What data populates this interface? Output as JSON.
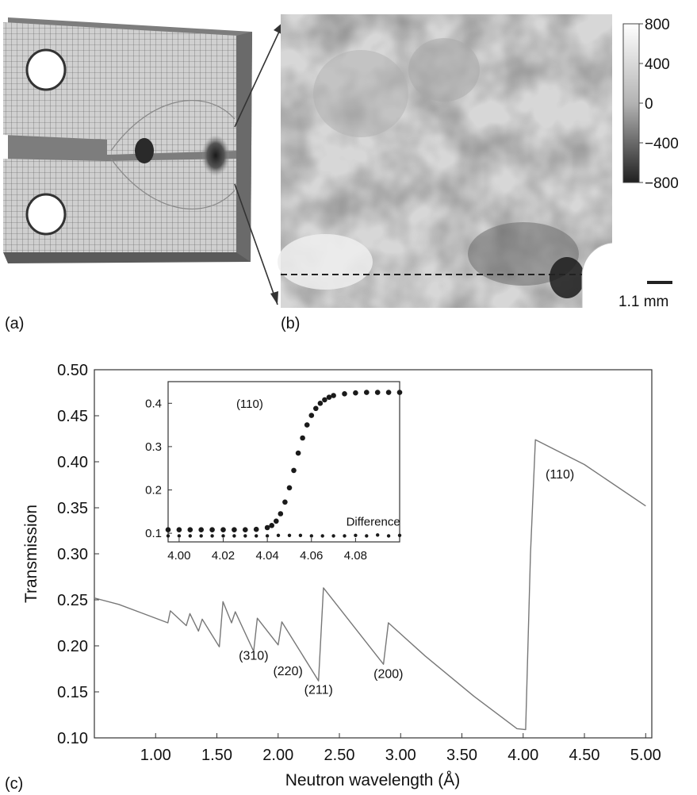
{
  "panel_labels": {
    "a": "(a)",
    "b": "(b)",
    "c": "(c)"
  },
  "colorbar": {
    "ticks": [
      "800",
      "400",
      "0",
      "−400",
      "−800"
    ]
  },
  "scale_bar": {
    "label": "1.1 mm"
  },
  "chart_data": {
    "type": "line",
    "xlabel": "Neutron wavelength (Å)",
    "ylabel": "Transmission",
    "xlim": [
      0.5,
      5.05
    ],
    "ylim": [
      0.1,
      0.5
    ],
    "x_ticks": [
      "1.00",
      "1.50",
      "2.00",
      "2.50",
      "3.00",
      "3.50",
      "4.00",
      "4.50",
      "5.00"
    ],
    "y_ticks": [
      "0.10",
      "0.15",
      "0.20",
      "0.25",
      "0.30",
      "0.35",
      "0.40",
      "0.45",
      "0.50"
    ],
    "series": [
      {
        "x": [
          0.5,
          0.7,
          0.9,
          1.1,
          1.12,
          1.25,
          1.28,
          1.35,
          1.38,
          1.52,
          1.55,
          1.62,
          1.65,
          1.8,
          1.83,
          2.0,
          2.03,
          2.33,
          2.37,
          2.86,
          2.9,
          3.2,
          3.6,
          3.95,
          4.02,
          4.06,
          4.1,
          4.5,
          5.0
        ],
        "y": [
          0.252,
          0.245,
          0.235,
          0.225,
          0.238,
          0.222,
          0.235,
          0.216,
          0.229,
          0.199,
          0.248,
          0.225,
          0.237,
          0.194,
          0.23,
          0.201,
          0.226,
          0.162,
          0.263,
          0.18,
          0.225,
          0.189,
          0.145,
          0.11,
          0.109,
          0.3,
          0.424,
          0.397,
          0.352
        ]
      }
    ],
    "annotations": [
      {
        "text": "(110)",
        "x": 4.3,
        "y": 0.382
      },
      {
        "text": "(310)",
        "x": 1.8,
        "y": 0.185
      },
      {
        "text": "(220)",
        "x": 2.08,
        "y": 0.168
      },
      {
        "text": "(211)",
        "x": 2.33,
        "y": 0.148
      },
      {
        "text": "(200)",
        "x": 2.9,
        "y": 0.165
      }
    ],
    "inset": {
      "type": "scatter",
      "xlim": [
        3.995,
        4.1
      ],
      "ylim": [
        0.08,
        0.45
      ],
      "x_ticks": [
        "4.00",
        "4.02",
        "4.04",
        "4.06",
        "4.08"
      ],
      "y_ticks": [
        "0.1",
        "0.2",
        "0.3",
        "0.4"
      ],
      "series": [
        {
          "x": [
            3.995,
            4.0,
            4.005,
            4.01,
            4.015,
            4.02,
            4.025,
            4.03,
            4.035,
            4.04,
            4.042,
            4.044,
            4.046,
            4.048,
            4.05,
            4.052,
            4.054,
            4.056,
            4.058,
            4.06,
            4.062,
            4.064,
            4.066,
            4.068,
            4.07,
            4.075,
            4.08,
            4.085,
            4.09,
            4.095,
            4.1
          ],
          "y": [
            0.108,
            0.108,
            0.108,
            0.108,
            0.108,
            0.108,
            0.108,
            0.108,
            0.109,
            0.113,
            0.118,
            0.128,
            0.145,
            0.172,
            0.205,
            0.245,
            0.285,
            0.32,
            0.35,
            0.372,
            0.388,
            0.4,
            0.408,
            0.414,
            0.418,
            0.422,
            0.424,
            0.425,
            0.425,
            0.425,
            0.425
          ]
        },
        {
          "name": "Difference",
          "x": [
            3.995,
            4.0,
            4.005,
            4.01,
            4.015,
            4.02,
            4.025,
            4.03,
            4.035,
            4.04,
            4.045,
            4.05,
            4.055,
            4.06,
            4.065,
            4.07,
            4.075,
            4.08,
            4.085,
            4.09,
            4.095,
            4.1
          ],
          "y": [
            0.094,
            0.094,
            0.094,
            0.094,
            0.094,
            0.094,
            0.094,
            0.094,
            0.094,
            0.094,
            0.095,
            0.095,
            0.095,
            0.094,
            0.094,
            0.094,
            0.094,
            0.095,
            0.094,
            0.096,
            0.094,
            0.095
          ]
        }
      ],
      "annotations": [
        {
          "text": "(110)",
          "x": 4.032,
          "y": 0.39
        },
        {
          "text": "Difference",
          "x": 4.088,
          "y": 0.118
        }
      ]
    }
  }
}
